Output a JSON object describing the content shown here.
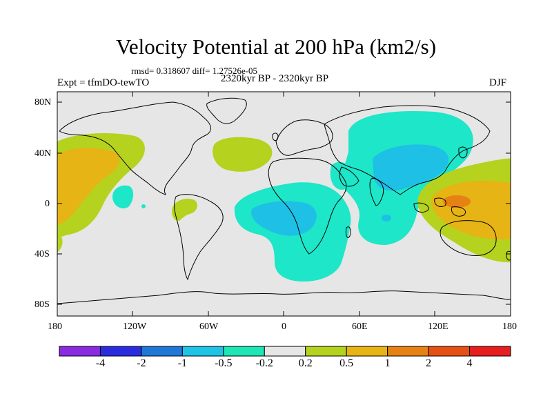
{
  "title": "Velocity Potential at 200 hPa (km2/s)",
  "stats_line": "rmsd= 0.318607 diff= 1.27526e-05",
  "experiment_label": "Expt = tfmDO-tewTO",
  "period_label": "2320kyr BP - 2320kyr BP",
  "season_label": "DJF",
  "axes": {
    "lat_ticks": [
      "80N",
      "40N",
      "0",
      "40S",
      "80S"
    ],
    "lon_ticks": [
      "180",
      "120W",
      "60W",
      "0",
      "60E",
      "120E",
      "180"
    ]
  },
  "colorbar": {
    "colors": [
      "#8a2be2",
      "#2b2be0",
      "#1e78d8",
      "#1ec3e6",
      "#1ee6b4",
      "#e6e6e6",
      "#b4d21e",
      "#e6b414",
      "#e68214",
      "#e65014",
      "#e61e1e"
    ],
    "labels": [
      "-4",
      "-2",
      "-1",
      "-0.5",
      "-0.2",
      "0.2",
      "0.5",
      "1",
      "2",
      "4"
    ]
  },
  "colors": {
    "background": "#e6e6e6",
    "neg_light": "#1ee6c8",
    "neg_med": "#1ec0e6",
    "pos_light": "#b4d21e",
    "pos_med": "#e6b414",
    "pos_strong": "#e68214"
  }
}
